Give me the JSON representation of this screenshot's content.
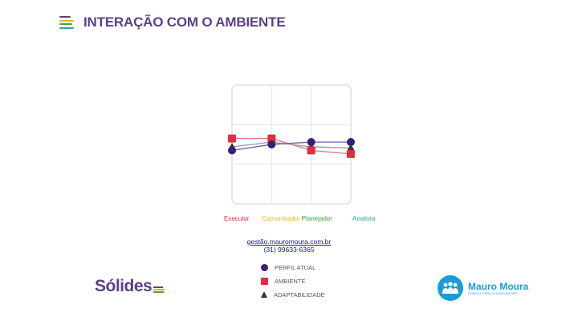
{
  "header": {
    "title": "INTERAÇÃO COM O AMBIENTE"
  },
  "chart_data": {
    "type": "line",
    "categories": [
      "Executor",
      "Comunicador",
      "Planejador",
      "Analista"
    ],
    "category_colors": [
      "#d9313e",
      "#e8b422",
      "#3fa83a",
      "#2aa7a0"
    ],
    "ylim": [
      0,
      100
    ],
    "series": [
      {
        "name": "PERFIL ATUAL",
        "marker": "circle",
        "color": "#3b1f6e",
        "line_color": "#7a6aa8",
        "values": [
          45,
          50,
          52,
          52
        ]
      },
      {
        "name": "AMBIENTE",
        "marker": "square",
        "color": "#d9313e",
        "line_color": "#e07b80",
        "values": [
          55,
          55,
          45,
          42
        ]
      },
      {
        "name": "ADAPTABILIDADE",
        "marker": "triangle",
        "color": "#333333",
        "line_color": "#9e9e9e",
        "values": [
          48,
          52,
          48,
          47
        ]
      }
    ]
  },
  "contact": {
    "site": "gestão.mauromoura.com.br",
    "phone": "(31) 99633-6365"
  },
  "legend": [
    {
      "label": "PERFIL ATUAL",
      "marker": "circle"
    },
    {
      "label": "AMBIENTE",
      "marker": "square"
    },
    {
      "label": "ADAPTABILIDADE",
      "marker": "triangle"
    }
  ],
  "logos": {
    "solides": "Sólides",
    "mauro_name": "Mauro Moura",
    "mauro_sub": "CONSULTORIA & WORKSHOPS"
  },
  "colors": {
    "title": "#5b3f8c",
    "brand_blue": "#1b9cd8"
  }
}
